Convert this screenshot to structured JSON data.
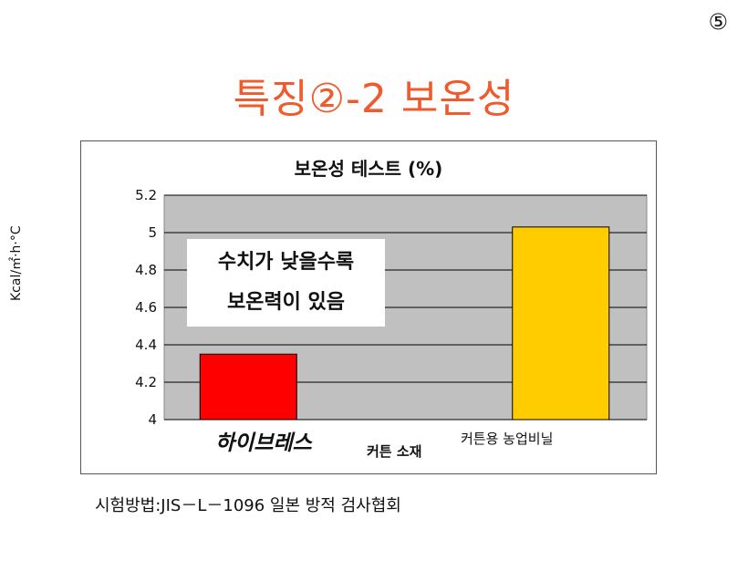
{
  "page_number": "⑤",
  "slide_title": "특징②-2 보온성",
  "footer": "시험방법:JIS－L－1096  일본 방적 검사협회",
  "chart_data": {
    "type": "bar",
    "title": "보온성 테스트 (%)",
    "ylabel": "Kcal/㎡·h·°C",
    "xlabel": "커튼 소재",
    "categories": [
      "하이브레스",
      "커튼용 농업비닐"
    ],
    "values": [
      4.35,
      5.03
    ],
    "colors": [
      "#ff0000",
      "#ffcc00"
    ],
    "ylim": [
      4,
      5.2
    ],
    "yticks": [
      "4",
      "4.2",
      "4.4",
      "4.6",
      "4.8",
      "5",
      "5.2"
    ],
    "grid": true,
    "note_lines": [
      "수치가 낮을수록",
      "보온력이 있음"
    ]
  }
}
